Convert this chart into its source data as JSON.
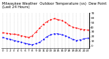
{
  "title": "Milwaukee Weather  Outdoor Temperature (vs)  Dew Point  (Last 24 Hours)",
  "temp_values": [
    28,
    27,
    26,
    25,
    24,
    22,
    20,
    18,
    22,
    30,
    38,
    46,
    52,
    56,
    58,
    56,
    54,
    50,
    44,
    40,
    38,
    36,
    35,
    34
  ],
  "dew_values": [
    18,
    16,
    14,
    12,
    10,
    8,
    6,
    4,
    3,
    5,
    8,
    14,
    20,
    24,
    26,
    26,
    24,
    22,
    18,
    14,
    12,
    13,
    15,
    17
  ],
  "ylim": [
    -5,
    70
  ],
  "yticks": [
    0,
    10,
    20,
    30,
    40,
    50,
    60,
    70
  ],
  "ytick_labels": [
    "0",
    "10",
    "20",
    "30",
    "40",
    "50",
    "60",
    "70"
  ],
  "temp_color": "#ff0000",
  "dew_color": "#0000ff",
  "grid_color": "#888888",
  "bg_color": "#ffffff",
  "title_fontsize": 3.8,
  "tick_fontsize": 3.0,
  "line_width": 0.6,
  "marker_size": 1.2,
  "n_hours": 24
}
